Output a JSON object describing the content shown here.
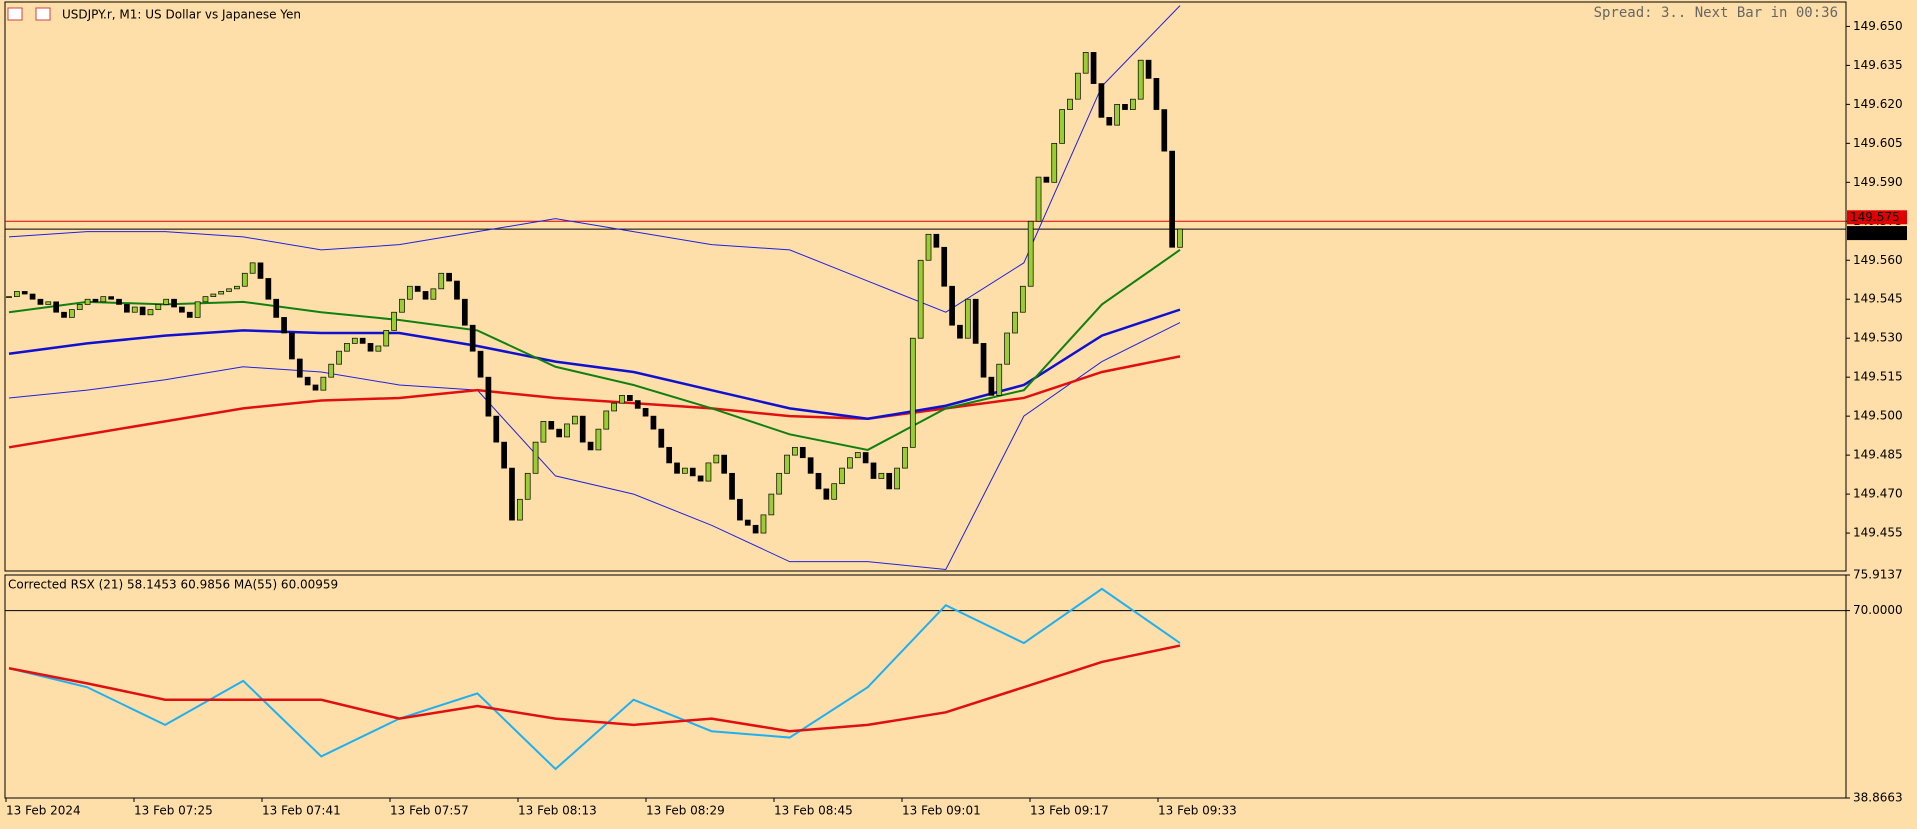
{
  "chart_data": {
    "type": "candlestick",
    "title": "USDJPY.r, M1:  US Dollar vs Japanese Yen",
    "status": "Spread: 3.. Next Bar in 00:36",
    "time_labels": [
      "13 Feb 2024",
      "13 Feb 07:25",
      "13 Feb 07:41",
      "13 Feb 07:57",
      "13 Feb 08:13",
      "13 Feb 08:29",
      "13 Feb 08:45",
      "13 Feb 09:01",
      "13 Feb 09:17",
      "13 Feb 09:33"
    ],
    "ylim": [
      149.4404,
      149.6594
    ],
    "yticks": [
      {
        "value": 149.65,
        "label": "149.650"
      },
      {
        "value": 149.635,
        "label": "149.635"
      },
      {
        "value": 149.62,
        "label": "149.620"
      },
      {
        "value": 149.605,
        "label": "149.605"
      },
      {
        "value": 149.59,
        "label": "149.590"
      },
      {
        "value": 149.575,
        "label": "149.575"
      },
      {
        "value": 149.56,
        "label": "149.560"
      },
      {
        "value": 149.545,
        "label": "149.545"
      },
      {
        "value": 149.53,
        "label": "149.530"
      },
      {
        "value": 149.515,
        "label": "149.515"
      },
      {
        "value": 149.5,
        "label": "149.500"
      },
      {
        "value": 149.485,
        "label": "149.485"
      },
      {
        "value": 149.47,
        "label": "149.470"
      },
      {
        "value": 149.455,
        "label": "149.455"
      }
    ],
    "ask": {
      "value": 149.575,
      "label": "149.575",
      "color": "#e00000"
    },
    "bid": {
      "value": 149.572,
      "label": "149.572",
      "color": "#000000"
    },
    "bull_color": "#9acd32",
    "bear_color": "#000000",
    "closes": [
      149.546,
      149.548,
      149.547,
      149.545,
      149.543,
      149.544,
      149.54,
      149.538,
      149.541,
      149.543,
      149.545,
      149.544,
      149.546,
      149.545,
      149.543,
      149.54,
      149.542,
      149.539,
      149.541,
      149.543,
      149.545,
      149.542,
      149.54,
      149.538,
      149.544,
      149.546,
      149.547,
      149.548,
      149.549,
      149.55,
      149.555,
      149.559,
      149.553,
      149.545,
      149.538,
      149.532,
      149.522,
      149.515,
      149.512,
      149.51,
      149.515,
      149.52,
      149.525,
      149.528,
      149.53,
      149.528,
      149.525,
      149.527,
      149.533,
      149.54,
      149.545,
      149.55,
      149.548,
      149.545,
      149.549,
      149.555,
      149.552,
      149.545,
      149.535,
      149.525,
      149.515,
      149.5,
      149.49,
      149.48,
      149.46,
      149.468,
      149.478,
      149.49,
      149.498,
      149.495,
      149.492,
      149.497,
      149.5,
      149.49,
      149.487,
      149.495,
      149.502,
      149.505,
      149.508,
      149.506,
      149.503,
      149.5,
      149.495,
      149.488,
      149.482,
      149.478,
      149.48,
      149.477,
      149.475,
      149.482,
      149.485,
      149.478,
      149.468,
      149.46,
      149.458,
      149.455,
      149.462,
      149.47,
      149.478,
      149.485,
      149.488,
      149.484,
      149.478,
      149.472,
      149.468,
      149.474,
      149.48,
      149.484,
      149.486,
      149.482,
      149.476,
      149.478,
      149.472,
      149.48,
      149.488,
      149.53,
      149.56,
      149.57,
      149.565,
      149.55,
      149.535,
      149.53,
      149.545,
      149.528,
      149.515,
      149.508,
      149.52,
      149.532,
      149.54,
      149.55,
      149.575,
      149.592,
      149.59,
      149.605,
      149.618,
      149.622,
      149.632,
      149.64,
      149.628,
      149.615,
      149.612,
      149.62,
      149.618,
      149.622,
      149.637,
      149.63,
      149.618,
      149.602,
      149.565,
      149.572
    ],
    "series": [
      {
        "color": "#2020e0",
        "width": 1,
        "values": [
          149.569,
          149.571,
          149.571,
          149.569,
          149.564,
          149.566,
          149.571,
          149.576,
          149.571,
          149.566,
          149.564,
          149.552,
          149.54,
          149.559,
          149.627,
          149.658
        ]
      },
      {
        "color": "#2020e0",
        "width": 1,
        "values": [
          149.507,
          149.51,
          149.514,
          149.519,
          149.517,
          149.512,
          149.51,
          149.477,
          149.47,
          149.458,
          149.444,
          149.444,
          149.441,
          149.5,
          149.521,
          149.536
        ]
      },
      {
        "color": "#e01010",
        "width": 2.5,
        "values": [
          149.488,
          149.493,
          149.498,
          149.503,
          149.506,
          149.507,
          149.51,
          149.507,
          149.505,
          149.503,
          149.5,
          149.499,
          149.503,
          149.507,
          149.517,
          149.523
        ]
      },
      {
        "color": "#1010d0",
        "width": 2.5,
        "values": [
          149.524,
          149.528,
          149.531,
          149.533,
          149.532,
          149.532,
          149.527,
          149.521,
          149.517,
          149.51,
          149.503,
          149.499,
          149.504,
          149.512,
          149.531,
          149.541
        ]
      },
      {
        "color": "#108010",
        "width": 2,
        "values": [
          149.54,
          149.544,
          149.543,
          149.544,
          149.54,
          149.537,
          149.533,
          149.519,
          149.512,
          149.503,
          149.493,
          149.487,
          149.503,
          149.51,
          149.543,
          149.564
        ]
      }
    ],
    "indicator": {
      "title": "Corrected RSX (21) 58.1453 60.9856 MA(55) 60.00959",
      "ylim": [
        38.8663,
        75.9137
      ],
      "yticks": [
        75.9137,
        {
          "value": 70,
          "label": "70.0000"
        },
        38.8663
      ],
      "series": [
        {
          "color": "#20b0f0",
          "width": 2,
          "values": [
            60.42,
            57.28,
            51.01,
            58.33,
            45.77,
            52.05,
            56.24,
            43.68,
            55.19,
            49.96,
            48.91,
            57.28,
            70.89,
            64.61,
            73.61,
            64.61
          ]
        },
        {
          "color": "#e01010",
          "width": 2.5,
          "values": [
            60.42,
            57.91,
            55.19,
            55.19,
            55.19,
            52.05,
            54.15,
            52.05,
            51.01,
            52.05,
            49.96,
            51.01,
            53.1,
            57.28,
            61.47,
            64.19
          ]
        }
      ]
    }
  }
}
